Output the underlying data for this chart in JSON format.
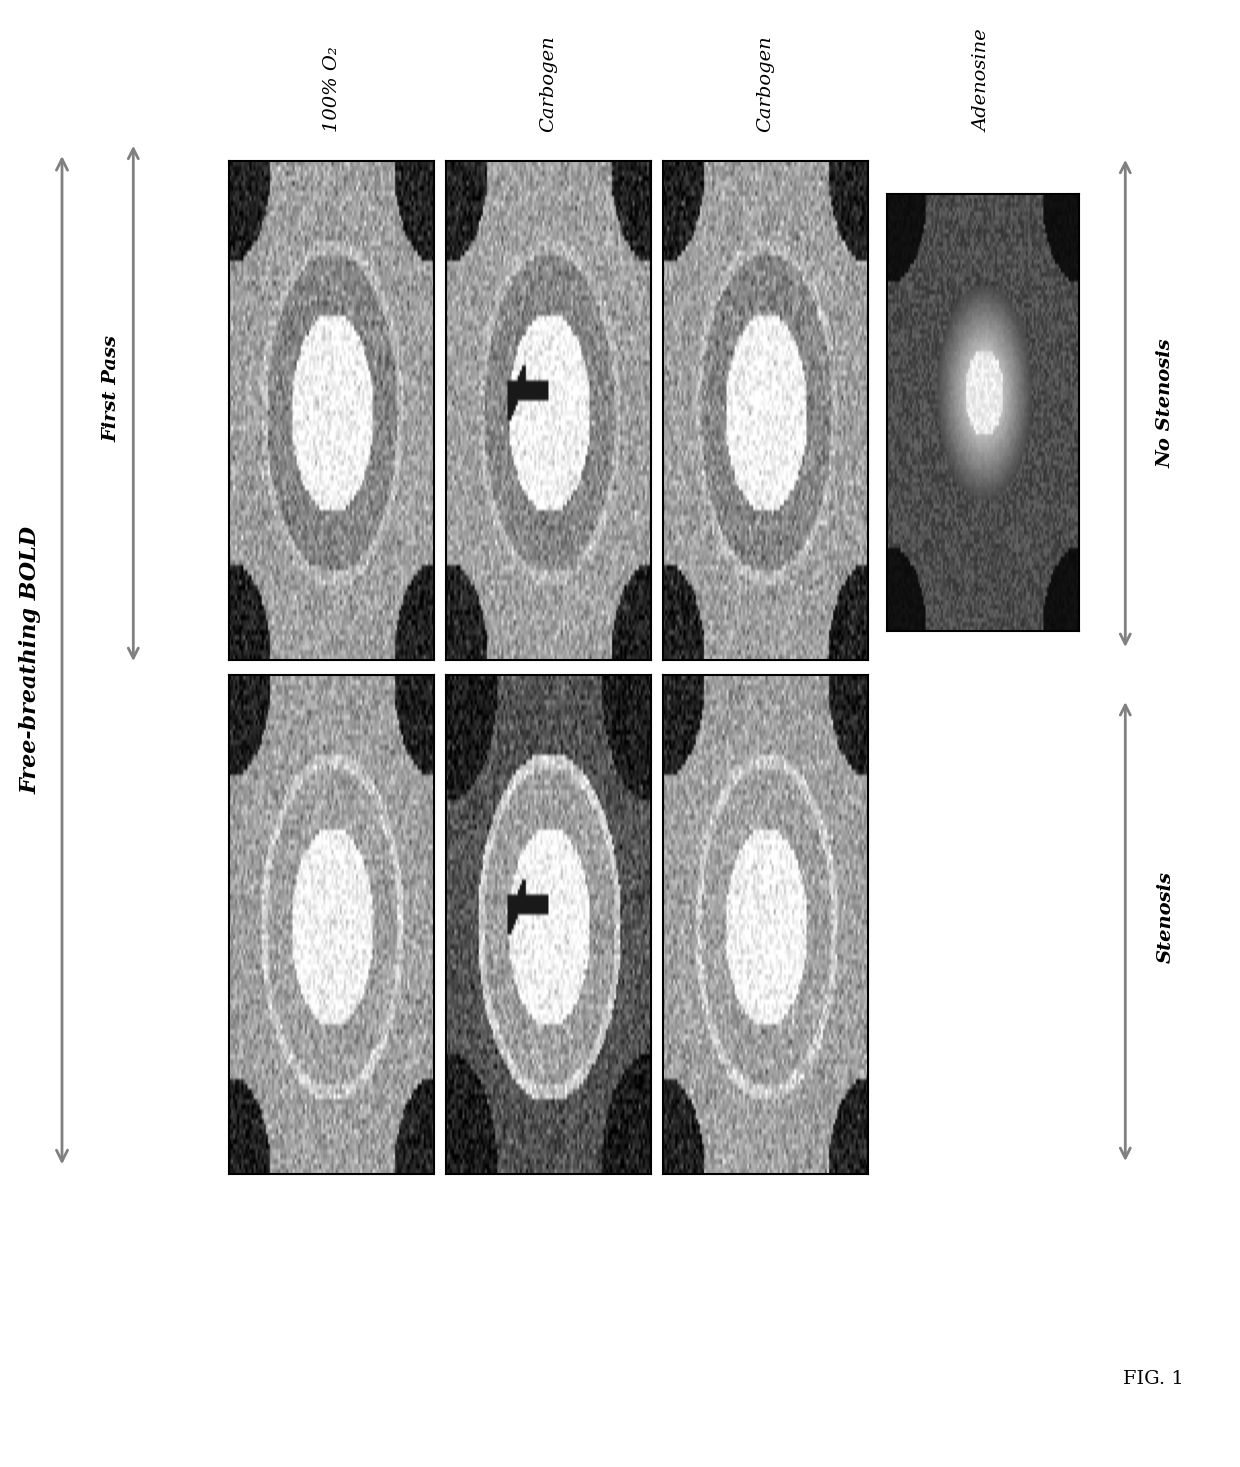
{
  "title": "FIG. 1",
  "label_free_breathing_bold": "Free-breathing BOLD",
  "label_first_pass": "First Pass",
  "label_no_stenosis": "No Stenosis",
  "label_stenosis": "Stenosis",
  "col_labels": [
    "100% O₂",
    "Carbogen",
    "Carbogen",
    "Adenosine"
  ],
  "row_labels": [
    "No Stenosis",
    "Stenosis"
  ],
  "background_color": "#ffffff",
  "grid_rows": 2,
  "grid_cols": 4,
  "image_bg_color": "#888888",
  "text_color": "#000000"
}
